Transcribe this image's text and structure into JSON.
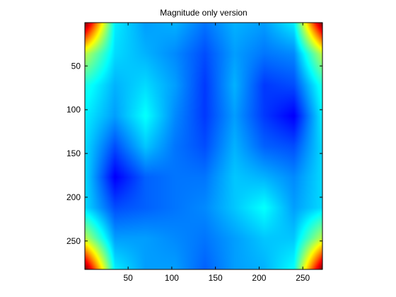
{
  "chart_data": {
    "type": "heatmap",
    "title": "Magnitude only version",
    "colormap": "jet",
    "xlabel": "",
    "ylabel": "",
    "xlim": [
      0.5,
      272.5
    ],
    "ylim": [
      0.5,
      282.5
    ],
    "y_reversed": true,
    "grid": false,
    "colorbar": false,
    "x_ticks": [
      50,
      100,
      150,
      200,
      250
    ],
    "y_ticks": [
      50,
      100,
      150,
      200,
      250
    ],
    "x_tick_labels": [
      "50",
      "100",
      "150",
      "200",
      "250"
    ],
    "y_tick_labels": [
      "50",
      "100",
      "150",
      "200",
      "250"
    ],
    "clim": [
      0,
      1
    ],
    "x_centers": [
      1,
      35,
      70,
      104,
      138,
      172,
      206,
      240,
      272
    ],
    "y_centers": [
      1,
      36,
      72,
      107,
      142,
      177,
      212,
      247,
      282
    ],
    "values": [
      [
        1.0,
        0.36,
        0.28,
        0.3,
        0.24,
        0.3,
        0.28,
        0.36,
        1.0
      ],
      [
        0.56,
        0.34,
        0.3,
        0.26,
        0.2,
        0.28,
        0.24,
        0.26,
        0.56
      ],
      [
        0.4,
        0.3,
        0.34,
        0.28,
        0.18,
        0.3,
        0.18,
        0.2,
        0.4
      ],
      [
        0.36,
        0.28,
        0.38,
        0.26,
        0.18,
        0.28,
        0.18,
        0.12,
        0.36
      ],
      [
        0.34,
        0.2,
        0.32,
        0.24,
        0.2,
        0.3,
        0.22,
        0.2,
        0.34
      ],
      [
        0.34,
        0.12,
        0.22,
        0.24,
        0.24,
        0.32,
        0.3,
        0.26,
        0.34
      ],
      [
        0.34,
        0.2,
        0.22,
        0.24,
        0.26,
        0.32,
        0.38,
        0.28,
        0.34
      ],
      [
        0.56,
        0.28,
        0.28,
        0.26,
        0.24,
        0.28,
        0.32,
        0.32,
        0.56
      ],
      [
        1.0,
        0.36,
        0.28,
        0.28,
        0.22,
        0.28,
        0.3,
        0.38,
        1.0
      ]
    ]
  }
}
